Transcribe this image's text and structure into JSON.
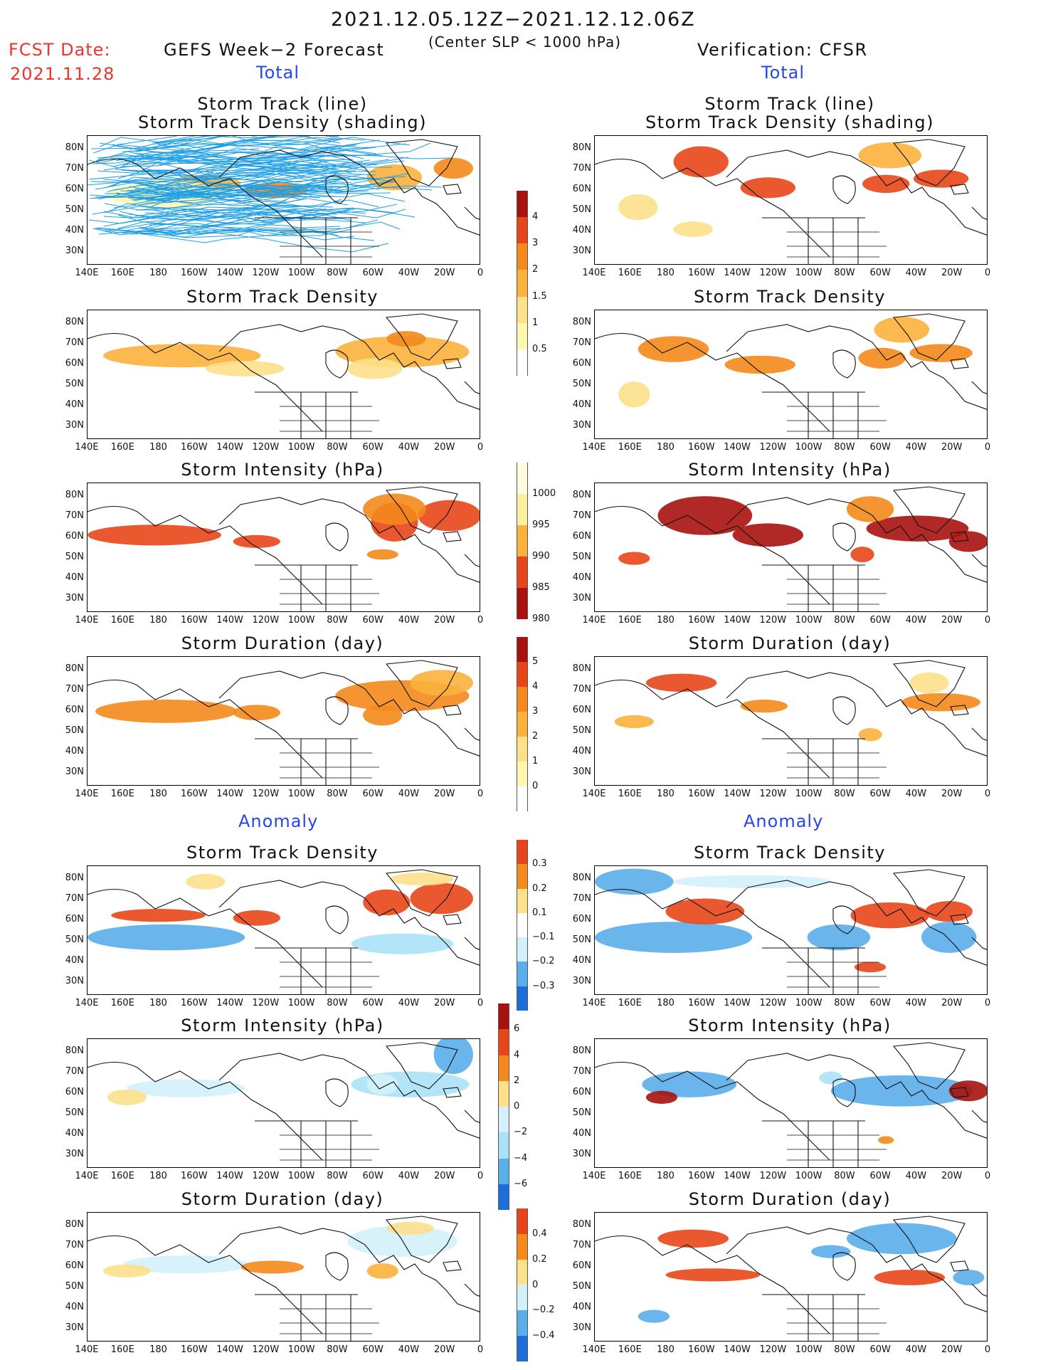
{
  "header": {
    "date_range": "2021.12.05.12Z−2021.12.12.06Z",
    "criterion": "(Center SLP < 1000 hPa)",
    "fcst_label": "FCST Date:",
    "fcst_date": "2021.11.28",
    "left_title": "GEFS Week−2 Forecast",
    "right_title": "Verification: CFSR",
    "total_left": "Total",
    "total_right": "Total",
    "anomaly_left": "Anomaly",
    "anomaly_right": "Anomaly"
  },
  "panel_titles": {
    "track_line": "Storm Track (line)",
    "track_density_shading": "Storm Track Density (shading)",
    "track_density": "Storm Track Density",
    "intensity": "Storm Intensity (hPa)",
    "duration": "Storm Duration (day)"
  },
  "axes": {
    "lat_labels": [
      "80N",
      "70N",
      "60N",
      "50N",
      "40N",
      "30N"
    ],
    "lon_labels": [
      "140E",
      "160E",
      "180",
      "160W",
      "140W",
      "120W",
      "100W",
      "80W",
      "60W",
      "40W",
      "20W",
      "0"
    ]
  },
  "colorbars": {
    "density_total": [
      "4",
      "3",
      "2",
      "1.5",
      "1",
      "0.5"
    ],
    "intensity_total": [
      "1000",
      "995",
      "990",
      "985",
      "980"
    ],
    "duration_total": [
      "5",
      "4",
      "3",
      "2",
      "1",
      "0"
    ],
    "density_anom": [
      "0.3",
      "0.2",
      "0.1",
      "−0.1",
      "−0.2",
      "−0.3"
    ],
    "intensity_anom": [
      "6",
      "4",
      "2",
      "0",
      "−2",
      "−4",
      "−6"
    ],
    "duration_anom": [
      "0.4",
      "0.2",
      "0",
      "−0.2",
      "−0.4"
    ]
  },
  "colors": {
    "warm": [
      "#fff7b0",
      "#fde08a",
      "#fbb13c",
      "#f48a1c",
      "#e8461a",
      "#a8120e"
    ],
    "cool": [
      "#d4f1fb",
      "#a9e2f6",
      "#5aaeea",
      "#1c6fd8"
    ],
    "track_line": "#1f9fe6"
  }
}
